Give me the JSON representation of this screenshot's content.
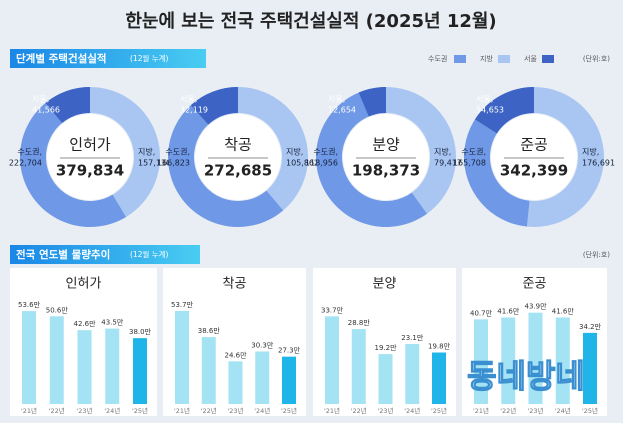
{
  "title": "한눈에 보는 전국 주택건설실적 (2025년 12월)",
  "section1": {
    "title": "단계별 주택건설실적",
    "note": "(12월 누계)",
    "unit": "(단위:호)"
  },
  "legend": {
    "items": [
      "수도권",
      "지방",
      "서울"
    ],
    "colors": [
      "#6f98e6",
      "#a9c6f2",
      "#3d63c4"
    ]
  },
  "section2": {
    "title": "전국 연도별 물량추이",
    "note": "(12월 누계)",
    "unit": "(단위:호)"
  },
  "chart_data": [
    {
      "type": "donut",
      "title": "인허가",
      "total": 379834,
      "total_label": "379,834",
      "categories": [
        "수도권,",
        "지방,",
        "서울,"
      ],
      "values": [
        222704,
        157130,
        41566
      ],
      "value_labels": [
        "222,704",
        "157,130",
        "41,566"
      ],
      "colors": [
        "#6f98e6",
        "#a9c6f2",
        "#3d63c4"
      ]
    },
    {
      "type": "donut",
      "title": "착공",
      "total": 272685,
      "total_label": "272,685",
      "categories": [
        "수도권,",
        "지방,",
        "서울,"
      ],
      "values": [
        166823,
        105862,
        32119
      ],
      "value_labels": [
        "166,823",
        "105,862",
        "32,119"
      ],
      "colors": [
        "#6f98e6",
        "#a9c6f2",
        "#3d63c4"
      ]
    },
    {
      "type": "donut",
      "title": "분양",
      "total": 198373,
      "total_label": "198,373",
      "categories": [
        "수도권,",
        "지방,",
        "서울,"
      ],
      "values": [
        118956,
        79417,
        12654
      ],
      "value_labels": [
        "118,956",
        "79,417",
        "12,654"
      ],
      "colors": [
        "#6f98e6",
        "#a9c6f2",
        "#3d63c4"
      ]
    },
    {
      "type": "donut",
      "title": "준공",
      "total": 342399,
      "total_label": "342,399",
      "categories": [
        "수도권,",
        "지방,",
        "서울,"
      ],
      "values": [
        165708,
        176691,
        54653
      ],
      "value_labels": [
        "165,708",
        "176,691",
        "54,653"
      ],
      "colors": [
        "#6f98e6",
        "#a9c6f2",
        "#3d63c4"
      ]
    },
    {
      "type": "bar",
      "title": "인허가",
      "categories": [
        "'21년",
        "'22년",
        "'23년",
        "'24년",
        "'25년"
      ],
      "values": [
        53.6,
        50.6,
        42.6,
        43.5,
        38.0
      ],
      "value_labels": [
        "53.6만",
        "50.6만",
        "42.6만",
        "43.5만",
        "38.0만"
      ],
      "colors": [
        "#a3e3f3",
        "#a3e3f3",
        "#a3e3f3",
        "#a3e3f3",
        "#1fb5e8"
      ],
      "ylim": [
        0,
        60
      ]
    },
    {
      "type": "bar",
      "title": "착공",
      "categories": [
        "'21년",
        "'22년",
        "'23년",
        "'24년",
        "'25년"
      ],
      "values": [
        53.7,
        38.6,
        24.6,
        30.3,
        27.3
      ],
      "value_labels": [
        "53.7만",
        "38.6만",
        "24.6만",
        "30.3만",
        "27.3만"
      ],
      "colors": [
        "#a3e3f3",
        "#a3e3f3",
        "#a3e3f3",
        "#a3e3f3",
        "#1fb5e8"
      ],
      "ylim": [
        0,
        60
      ]
    },
    {
      "type": "bar",
      "title": "분양",
      "categories": [
        "'21년",
        "'22년",
        "'23년",
        "'24년",
        "'25년"
      ],
      "values": [
        33.7,
        28.8,
        19.2,
        23.1,
        19.8
      ],
      "value_labels": [
        "33.7만",
        "28.8만",
        "19.2만",
        "23.1만",
        "19.8만"
      ],
      "colors": [
        "#a3e3f3",
        "#a3e3f3",
        "#a3e3f3",
        "#a3e3f3",
        "#1fb5e8"
      ],
      "ylim": [
        0,
        40
      ]
    },
    {
      "type": "bar",
      "title": "준공",
      "categories": [
        "'21년",
        "'22년",
        "'23년",
        "'24년",
        "'25년"
      ],
      "values": [
        40.7,
        41.6,
        43.9,
        41.6,
        34.2
      ],
      "value_labels": [
        "40.7만",
        "41.6만",
        "43.9만",
        "41.6만",
        "34.2만"
      ],
      "colors": [
        "#a3e3f3",
        "#a3e3f3",
        "#a3e3f3",
        "#a3e3f3",
        "#1fb5e8"
      ],
      "ylim": [
        0,
        50
      ]
    }
  ],
  "watermark": "동네방네"
}
